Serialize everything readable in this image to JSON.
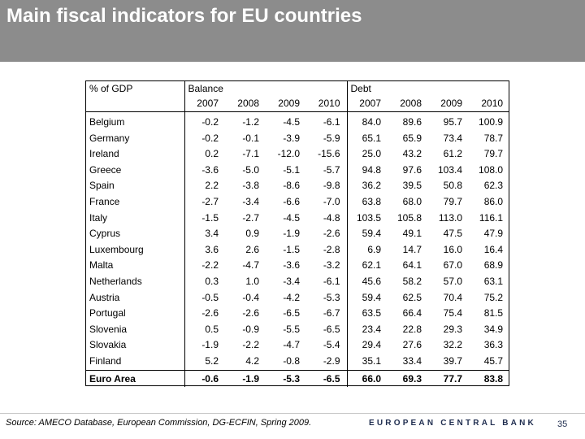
{
  "slide": {
    "title": "Main fiscal indicators for EU countries",
    "source": "Source: AMECO Database, European Commission, DG-ECFIN, Spring 2009.",
    "bank_name": "EUROPEAN CENTRAL BANK",
    "page_number": "35",
    "colors": {
      "title_bar": "#8c8c8c",
      "bank_text": "#1f2d4f"
    }
  },
  "table": {
    "corner_label": "% of GDP",
    "group_balance": "Balance",
    "group_debt": "Debt",
    "years": [
      "2007",
      "2008",
      "2009",
      "2010"
    ],
    "rows": [
      {
        "country": "Belgium",
        "balance": [
          "-0.2",
          "-1.2",
          "-4.5",
          "-6.1"
        ],
        "debt": [
          "84.0",
          "89.6",
          "95.7",
          "100.9"
        ]
      },
      {
        "country": "Germany",
        "balance": [
          "-0.2",
          "-0.1",
          "-3.9",
          "-5.9"
        ],
        "debt": [
          "65.1",
          "65.9",
          "73.4",
          "78.7"
        ]
      },
      {
        "country": "Ireland",
        "balance": [
          "0.2",
          "-7.1",
          "-12.0",
          "-15.6"
        ],
        "debt": [
          "25.0",
          "43.2",
          "61.2",
          "79.7"
        ]
      },
      {
        "country": "Greece",
        "balance": [
          "-3.6",
          "-5.0",
          "-5.1",
          "-5.7"
        ],
        "debt": [
          "94.8",
          "97.6",
          "103.4",
          "108.0"
        ]
      },
      {
        "country": "Spain",
        "balance": [
          "2.2",
          "-3.8",
          "-8.6",
          "-9.8"
        ],
        "debt": [
          "36.2",
          "39.5",
          "50.8",
          "62.3"
        ]
      },
      {
        "country": "France",
        "balance": [
          "-2.7",
          "-3.4",
          "-6.6",
          "-7.0"
        ],
        "debt": [
          "63.8",
          "68.0",
          "79.7",
          "86.0"
        ]
      },
      {
        "country": "Italy",
        "balance": [
          "-1.5",
          "-2.7",
          "-4.5",
          "-4.8"
        ],
        "debt": [
          "103.5",
          "105.8",
          "113.0",
          "116.1"
        ]
      },
      {
        "country": "Cyprus",
        "balance": [
          "3.4",
          "0.9",
          "-1.9",
          "-2.6"
        ],
        "debt": [
          "59.4",
          "49.1",
          "47.5",
          "47.9"
        ]
      },
      {
        "country": "Luxembourg",
        "balance": [
          "3.6",
          "2.6",
          "-1.5",
          "-2.8"
        ],
        "debt": [
          "6.9",
          "14.7",
          "16.0",
          "16.4"
        ]
      },
      {
        "country": "Malta",
        "balance": [
          "-2.2",
          "-4.7",
          "-3.6",
          "-3.2"
        ],
        "debt": [
          "62.1",
          "64.1",
          "67.0",
          "68.9"
        ]
      },
      {
        "country": "Netherlands",
        "balance": [
          "0.3",
          "1.0",
          "-3.4",
          "-6.1"
        ],
        "debt": [
          "45.6",
          "58.2",
          "57.0",
          "63.1"
        ]
      },
      {
        "country": "Austria",
        "balance": [
          "-0.5",
          "-0.4",
          "-4.2",
          "-5.3"
        ],
        "debt": [
          "59.4",
          "62.5",
          "70.4",
          "75.2"
        ]
      },
      {
        "country": "Portugal",
        "balance": [
          "-2.6",
          "-2.6",
          "-6.5",
          "-6.7"
        ],
        "debt": [
          "63.5",
          "66.4",
          "75.4",
          "81.5"
        ]
      },
      {
        "country": "Slovenia",
        "balance": [
          "0.5",
          "-0.9",
          "-5.5",
          "-6.5"
        ],
        "debt": [
          "23.4",
          "22.8",
          "29.3",
          "34.9"
        ]
      },
      {
        "country": "Slovakia",
        "balance": [
          "-1.9",
          "-2.2",
          "-4.7",
          "-5.4"
        ],
        "debt": [
          "29.4",
          "27.6",
          "32.2",
          "36.3"
        ]
      },
      {
        "country": "Finland",
        "balance": [
          "5.2",
          "4.2",
          "-0.8",
          "-2.9"
        ],
        "debt": [
          "35.1",
          "33.4",
          "39.7",
          "45.7"
        ]
      }
    ],
    "total": {
      "country": "Euro Area",
      "balance": [
        "-0.6",
        "-1.9",
        "-5.3",
        "-6.5"
      ],
      "debt": [
        "66.0",
        "69.3",
        "77.7",
        "83.8"
      ]
    }
  }
}
